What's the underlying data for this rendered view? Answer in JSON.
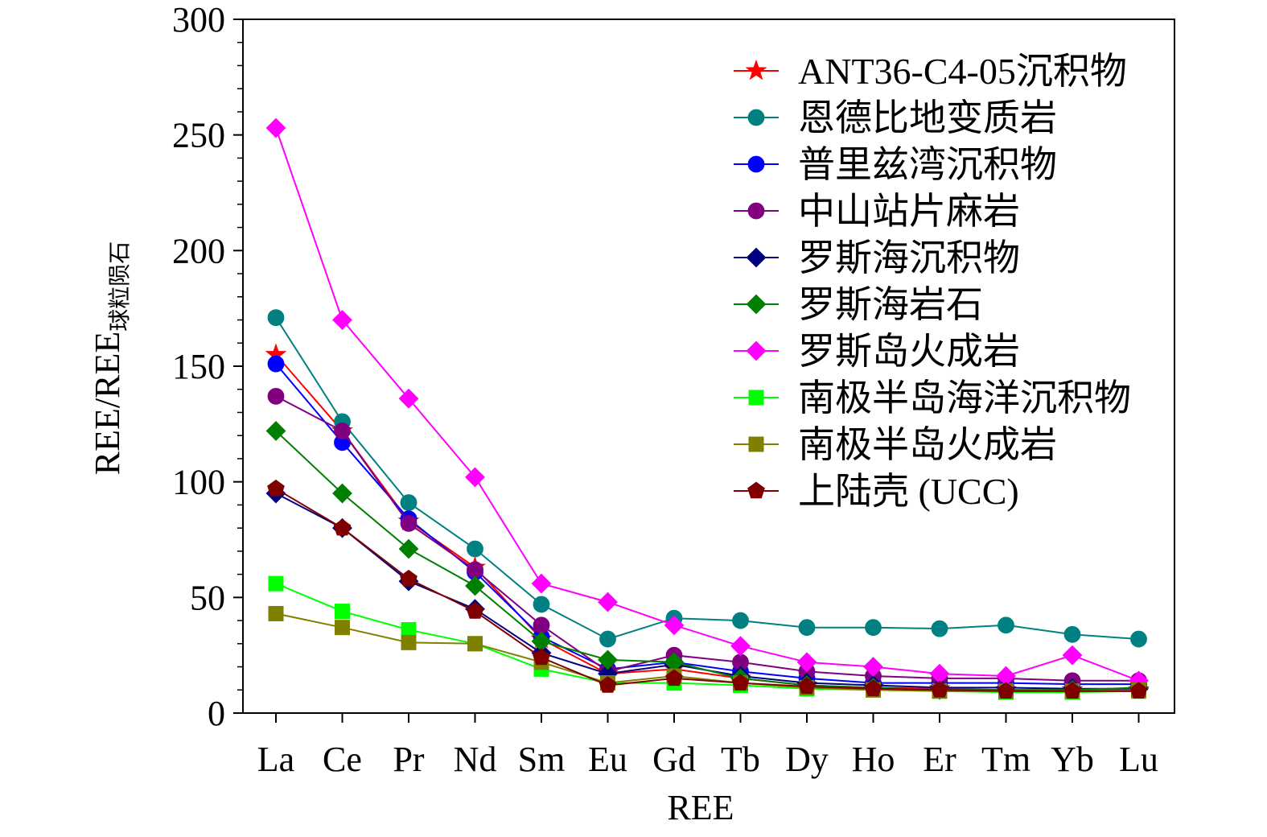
{
  "chart_data": {
    "type": "line",
    "xlabel": "REE",
    "ylabel": "REE/REE",
    "ylabel_subscript": "球粒陨石",
    "ylim": [
      0,
      300
    ],
    "yticks": [
      0,
      50,
      100,
      150,
      200,
      250,
      300
    ],
    "categories": [
      "La",
      "Ce",
      "Pr",
      "Nd",
      "Sm",
      "Eu",
      "Gd",
      "Tb",
      "Dy",
      "Ho",
      "Er",
      "Tm",
      "Yb",
      "Lu"
    ],
    "grid": false,
    "legend_position": "top-right",
    "series": [
      {
        "name": "ANT36-C4-05沉积物",
        "color": "#ff0000",
        "marker": "star",
        "values": [
          155,
          122,
          83,
          63,
          32,
          17,
          19,
          15,
          12,
          11,
          10.5,
          10,
          10,
          10
        ]
      },
      {
        "name": "恩德比地变质岩",
        "color": "#008080",
        "marker": "circle",
        "values": [
          171,
          126,
          91,
          71,
          47,
          32,
          41,
          40,
          37,
          37,
          36.5,
          38,
          34,
          32
        ]
      },
      {
        "name": "普里兹湾沉积物",
        "color": "#0000ff",
        "marker": "circle",
        "values": [
          151,
          117,
          84,
          61,
          33,
          19,
          22,
          18,
          15,
          13,
          13,
          13,
          12.5,
          12.5
        ]
      },
      {
        "name": "中山站片麻岩",
        "color": "#800080",
        "marker": "circle",
        "values": [
          137,
          122,
          82,
          62,
          38,
          18,
          25,
          22,
          18,
          16,
          15,
          15,
          14,
          14
        ]
      },
      {
        "name": "罗斯海沉积物",
        "color": "#000080",
        "marker": "diamond",
        "values": [
          95,
          80,
          57,
          45,
          26,
          17,
          21,
          16,
          13,
          12,
          11,
          11,
          10.5,
          10.5
        ]
      },
      {
        "name": "罗斯海岩石",
        "color": "#008000",
        "marker": "diamond",
        "values": [
          122,
          95,
          71,
          55,
          31,
          23,
          22,
          15,
          12,
          11,
          10,
          10,
          10,
          11
        ]
      },
      {
        "name": "罗斯岛火成岩",
        "color": "#ff00ff",
        "marker": "diamond",
        "values": [
          253,
          170,
          136,
          102,
          56,
          48,
          38,
          29,
          22,
          20,
          17,
          16,
          25,
          14
        ]
      },
      {
        "name": "南极半岛海洋沉积物",
        "color": "#00ff00",
        "marker": "square",
        "values": [
          56,
          44,
          36,
          30,
          19,
          13,
          13,
          12,
          10.5,
          10,
          9.5,
          9,
          9,
          9.5
        ]
      },
      {
        "name": "南极半岛火成岩",
        "color": "#808000",
        "marker": "square",
        "values": [
          43,
          37,
          30.5,
          30,
          22,
          13,
          16,
          13,
          11,
          10,
          9.5,
          9.5,
          9.5,
          10
        ]
      },
      {
        "name": "上陆壳 (UCC)",
        "color": "#800000",
        "marker": "pentagon",
        "values": [
          97,
          80,
          58,
          44,
          24,
          12,
          15,
          13,
          11.5,
          10.5,
          10,
          9.5,
          9.5,
          9.5
        ]
      }
    ]
  }
}
